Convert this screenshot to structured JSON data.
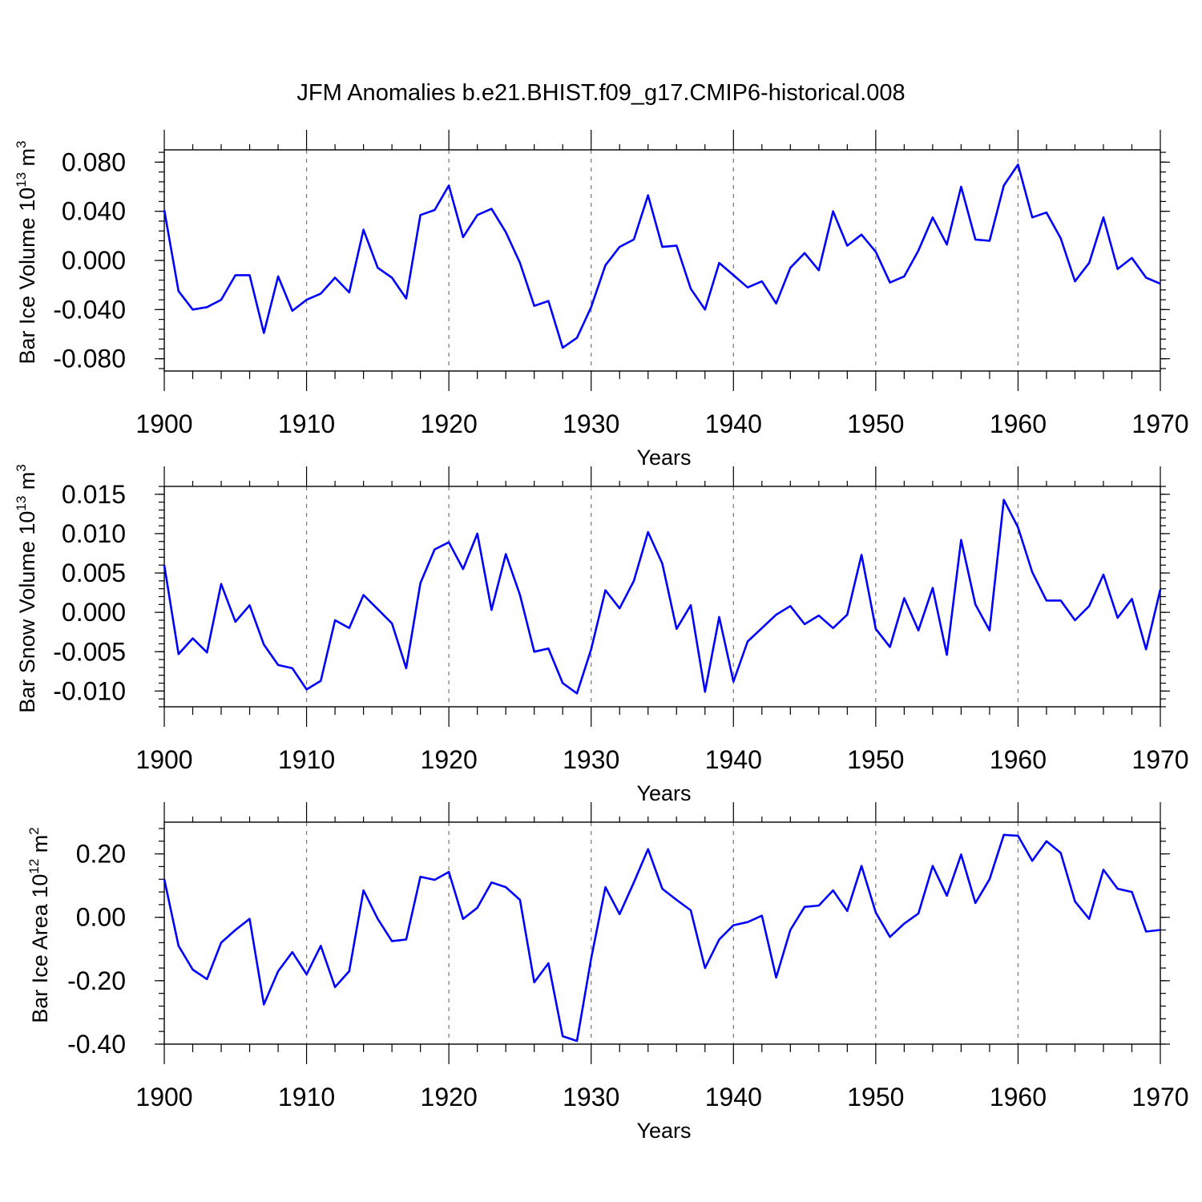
{
  "title": "JFM Anomalies b.e21.BHIST.f09_g17.CMIP6-historical.008",
  "chart_data": [
    {
      "type": "line",
      "name": "ice-volume",
      "ylabel": "Bar Ice Volume 10",
      "ylabel_exp": "13",
      "ylabel_unit": "m",
      "ylabel_unit_exp": "3",
      "xlabel": "Years",
      "xlim": [
        1900,
        1970
      ],
      "ylim": [
        -0.09,
        0.09
      ],
      "x_ticks": [
        "1900",
        "1910",
        "1920",
        "1930",
        "1940",
        "1950",
        "1960",
        "1970"
      ],
      "y_ticks": [
        {
          "v": 0.08,
          "label": "0.080"
        },
        {
          "v": 0.04,
          "label": "0.040"
        },
        {
          "v": 0.0,
          "label": "0.000"
        },
        {
          "v": -0.04,
          "label": "-0.040"
        },
        {
          "v": -0.08,
          "label": "-0.080"
        }
      ],
      "y_minor_step": 0.008,
      "grid_years": [
        1910,
        1920,
        1930,
        1940,
        1950,
        1960
      ],
      "x_start": 1900,
      "values": [
        0.041,
        -0.025,
        -0.04,
        -0.038,
        -0.032,
        -0.012,
        -0.012,
        -0.059,
        -0.013,
        -0.041,
        -0.032,
        -0.027,
        -0.014,
        -0.026,
        0.025,
        -0.006,
        -0.014,
        -0.031,
        0.037,
        0.041,
        0.061,
        0.019,
        0.037,
        0.042,
        0.023,
        -0.002,
        -0.037,
        -0.033,
        -0.071,
        -0.063,
        -0.038,
        -0.004,
        0.011,
        0.017,
        0.053,
        0.011,
        0.012,
        -0.023,
        -0.04,
        -0.002,
        -0.012,
        -0.022,
        -0.017,
        -0.035,
        -0.006,
        0.006,
        -0.008,
        0.04,
        0.012,
        0.021,
        0.007,
        -0.018,
        -0.013,
        0.008,
        0.035,
        0.013,
        0.06,
        0.017,
        0.016,
        0.061,
        0.078,
        0.035,
        0.039,
        0.018,
        -0.017,
        -0.002,
        0.035,
        -0.007,
        0.002,
        -0.014,
        -0.019
      ]
    },
    {
      "type": "line",
      "name": "snow-volume",
      "ylabel": "Bar Snow Volume 10",
      "ylabel_exp": "13",
      "ylabel_unit": "m",
      "ylabel_unit_exp": "3",
      "xlabel": "Years",
      "xlim": [
        1900,
        1970
      ],
      "ylim": [
        -0.012,
        0.016
      ],
      "x_ticks": [
        "1900",
        "1910",
        "1920",
        "1930",
        "1940",
        "1950",
        "1960",
        "1970"
      ],
      "y_ticks": [
        {
          "v": 0.015,
          "label": "0.015"
        },
        {
          "v": 0.01,
          "label": "0.010"
        },
        {
          "v": 0.005,
          "label": "0.005"
        },
        {
          "v": 0.0,
          "label": "0.000"
        },
        {
          "v": -0.005,
          "label": "-0.005"
        },
        {
          "v": -0.01,
          "label": "-0.010"
        }
      ],
      "y_minor_step": 0.001,
      "grid_years": [
        1910,
        1920,
        1930,
        1940,
        1950,
        1960
      ],
      "x_start": 1900,
      "values": [
        0.006,
        -0.0053,
        -0.0033,
        -0.0051,
        0.0036,
        -0.0012,
        0.0009,
        -0.0041,
        -0.0067,
        -0.0071,
        -0.0098,
        -0.0087,
        -0.001,
        -0.002,
        0.0022,
        0.0004,
        -0.0014,
        -0.0071,
        0.0037,
        0.008,
        0.0089,
        0.0055,
        0.01,
        0.0003,
        0.0074,
        0.0022,
        -0.005,
        -0.0046,
        -0.009,
        -0.0103,
        -0.0047,
        0.0028,
        0.0005,
        0.004,
        0.0102,
        0.0062,
        -0.0021,
        0.0009,
        -0.0101,
        -0.0006,
        -0.0088,
        -0.0037,
        -0.002,
        -0.0003,
        0.0008,
        -0.0015,
        -0.0004,
        -0.002,
        -0.0003,
        0.0073,
        -0.0021,
        -0.0044,
        0.0018,
        -0.0023,
        0.0031,
        -0.0054,
        0.0092,
        0.001,
        -0.0023,
        0.0143,
        0.0108,
        0.0051,
        0.0015,
        0.0015,
        -0.001,
        0.0008,
        0.0048,
        -0.0007,
        0.0017,
        -0.0047,
        0.0029
      ]
    },
    {
      "type": "line",
      "name": "ice-area",
      "ylabel": "Bar Ice Area 10",
      "ylabel_exp": "12",
      "ylabel_unit": "m",
      "ylabel_unit_exp": "2",
      "xlabel": "Years",
      "xlim": [
        1900,
        1970
      ],
      "ylim": [
        -0.4,
        0.3
      ],
      "x_ticks": [
        "1900",
        "1910",
        "1920",
        "1930",
        "1940",
        "1950",
        "1960",
        "1970"
      ],
      "y_ticks": [
        {
          "v": 0.2,
          "label": "0.20"
        },
        {
          "v": 0.0,
          "label": "0.00"
        },
        {
          "v": -0.2,
          "label": "-0.20"
        },
        {
          "v": -0.4,
          "label": "-0.40"
        }
      ],
      "y_minor_step": 0.04,
      "grid_years": [
        1910,
        1920,
        1930,
        1940,
        1950,
        1960
      ],
      "x_start": 1900,
      "values": [
        0.12,
        -0.09,
        -0.165,
        -0.195,
        -0.08,
        -0.04,
        -0.005,
        -0.275,
        -0.17,
        -0.11,
        -0.18,
        -0.09,
        -0.22,
        -0.17,
        0.085,
        -0.005,
        -0.075,
        -0.07,
        0.128,
        0.118,
        0.143,
        -0.005,
        0.03,
        0.11,
        0.095,
        0.055,
        -0.205,
        -0.145,
        -0.375,
        -0.39,
        -0.13,
        0.095,
        0.01,
        0.11,
        0.215,
        0.09,
        0.055,
        0.022,
        -0.16,
        -0.07,
        -0.025,
        -0.015,
        0.005,
        -0.19,
        -0.04,
        0.033,
        0.037,
        0.085,
        0.02,
        0.162,
        0.015,
        -0.062,
        -0.02,
        0.012,
        0.162,
        0.068,
        0.198,
        0.045,
        0.12,
        0.26,
        0.257,
        0.178,
        0.24,
        0.203,
        0.05,
        -0.005,
        0.15,
        0.09,
        0.08,
        -0.045,
        -0.04
      ]
    }
  ]
}
